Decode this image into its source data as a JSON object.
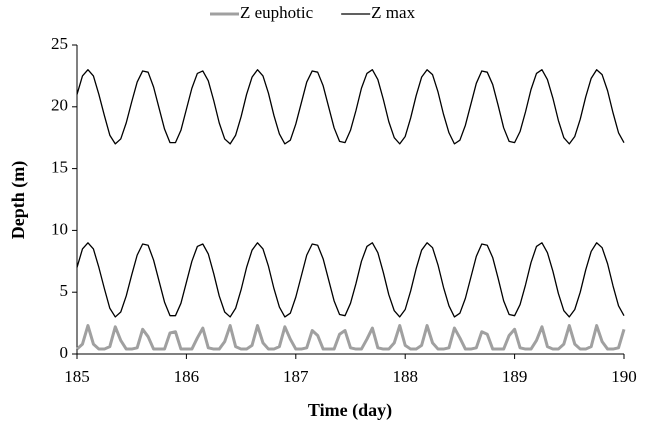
{
  "chart_data": {
    "type": "line",
    "x_label": "Time (day)",
    "y_label": "Depth (m)",
    "xlim": [
      185,
      190
    ],
    "xticks": [
      185,
      186,
      187,
      188,
      189,
      190
    ],
    "ylim": [
      0,
      25
    ],
    "yticks": [
      0,
      5,
      10,
      15,
      20,
      25
    ],
    "grid": false,
    "legend": "top",
    "x": [
      185,
      185.05,
      185.1,
      185.15,
      185.2,
      185.25,
      185.3,
      185.35,
      185.4,
      185.45,
      185.5,
      185.55,
      185.6,
      185.65,
      185.7,
      185.75,
      185.8,
      185.85,
      185.9,
      185.95,
      186,
      186.05,
      186.1,
      186.15,
      186.2,
      186.25,
      186.3,
      186.35,
      186.4,
      186.45,
      186.5,
      186.55,
      186.6,
      186.65,
      186.7,
      186.75,
      186.8,
      186.85,
      186.9,
      186.95,
      187,
      187.05,
      187.1,
      187.15,
      187.2,
      187.25,
      187.3,
      187.35,
      187.4,
      187.45,
      187.5,
      187.55,
      187.6,
      187.65,
      187.7,
      187.75,
      187.8,
      187.85,
      187.9,
      187.95,
      188,
      188.05,
      188.1,
      188.15,
      188.2,
      188.25,
      188.3,
      188.35,
      188.4,
      188.45,
      188.5,
      188.55,
      188.6,
      188.65,
      188.7,
      188.75,
      188.8,
      188.85,
      188.9,
      188.95,
      189,
      189.05,
      189.1,
      189.15,
      189.2,
      189.25,
      189.3,
      189.35,
      189.4,
      189.45,
      189.5,
      189.55,
      189.6,
      189.65,
      189.7,
      189.75,
      189.8,
      189.85,
      189.9,
      189.95,
      190
    ],
    "series": [
      {
        "name": "Z euphotic",
        "color": "#a0a0a0",
        "values": [
          0.4,
          0.8,
          2.3,
          0.8,
          0.4,
          0.4,
          0.6,
          2.2,
          1.1,
          0.4,
          0.4,
          0.5,
          2,
          1.4,
          0.4,
          0.4,
          0.4,
          1.7,
          1.8,
          0.4,
          0.4,
          0.4,
          1.3,
          2.1,
          0.5,
          0.4,
          0.4,
          1,
          2.3,
          0.6,
          0.4,
          0.4,
          0.7,
          2.3,
          0.9,
          0.4,
          0.4,
          0.6,
          2.2,
          1.2,
          0.4,
          0.4,
          0.5,
          1.9,
          1.5,
          0.4,
          0.4,
          0.4,
          1.6,
          1.9,
          0.5,
          0.4,
          0.4,
          1.2,
          2.1,
          0.5,
          0.4,
          0.4,
          0.9,
          2.3,
          0.7,
          0.4,
          0.4,
          0.7,
          2.3,
          0.9,
          0.4,
          0.4,
          0.5,
          2.1,
          1.3,
          0.4,
          0.4,
          0.5,
          1.8,
          1.6,
          0.4,
          0.4,
          0.4,
          1.5,
          2,
          0.5,
          0.4,
          0.4,
          1.1,
          2.2,
          0.6,
          0.4,
          0.4,
          0.8,
          2.3,
          0.8,
          0.4,
          0.4,
          0.6,
          2.3,
          1,
          0.4,
          0.4,
          0.5,
          2
        ]
      },
      {
        "name": "Z max",
        "color": "#000000",
        "values": [
          21,
          22.5,
          23,
          22.5,
          21,
          19.3,
          17.7,
          17,
          17.4,
          18.7,
          20.4,
          22,
          22.9,
          22.8,
          21.6,
          19.9,
          18.2,
          17.1,
          17.1,
          18.1,
          19.8,
          21.5,
          22.7,
          22.9,
          22.1,
          20.5,
          18.7,
          17.4,
          17,
          17.7,
          19.2,
          21,
          22.4,
          23,
          22.5,
          21.1,
          19.3,
          17.8,
          17,
          17.3,
          18.6,
          20.3,
          22,
          22.9,
          22.8,
          21.7,
          20,
          18.3,
          17.2,
          17.1,
          18.1,
          19.7,
          21.5,
          22.7,
          23,
          22.2,
          20.6,
          18.8,
          17.5,
          17,
          17.6,
          19.1,
          20.9,
          22.4,
          23,
          22.6,
          21.2,
          19.4,
          17.9,
          17,
          17.3,
          18.5,
          20.2,
          21.9,
          22.9,
          22.8,
          21.8,
          20.1,
          18.3,
          17.2,
          17.1,
          18,
          19.6,
          21.4,
          22.7,
          23,
          22.2,
          20.7,
          18.9,
          17.5,
          17,
          17.6,
          19,
          20.8,
          22.3,
          23,
          22.6,
          21.3,
          19.5,
          17.9,
          17.1
        ]
      },
      {
        "color": "#000000",
        "values": [
          7,
          8.5,
          9,
          8.5,
          7,
          5.3,
          3.7,
          3,
          3.4,
          4.7,
          6.4,
          8,
          8.9,
          8.8,
          7.6,
          5.9,
          4.2,
          3.1,
          3.1,
          4.1,
          5.8,
          7.5,
          8.7,
          8.9,
          8.1,
          6.5,
          4.7,
          3.4,
          3,
          3.7,
          5.2,
          7,
          8.4,
          9,
          8.5,
          7.1,
          5.3,
          3.8,
          3,
          3.3,
          4.6,
          6.3,
          8,
          8.9,
          8.8,
          7.7,
          6,
          4.3,
          3.2,
          3.1,
          4.1,
          5.7,
          7.5,
          8.7,
          9,
          8.2,
          6.6,
          4.8,
          3.5,
          3,
          3.6,
          5.1,
          6.9,
          8.4,
          9,
          8.6,
          7.2,
          5.4,
          3.9,
          3,
          3.3,
          4.5,
          6.2,
          7.9,
          8.9,
          8.8,
          7.8,
          6.1,
          4.3,
          3.2,
          3.1,
          4,
          5.6,
          7.4,
          8.7,
          9,
          8.2,
          6.7,
          4.9,
          3.5,
          3,
          3.6,
          5,
          6.8,
          8.3,
          9,
          8.6,
          7.3,
          5.5,
          3.9,
          3.1
        ]
      }
    ]
  }
}
